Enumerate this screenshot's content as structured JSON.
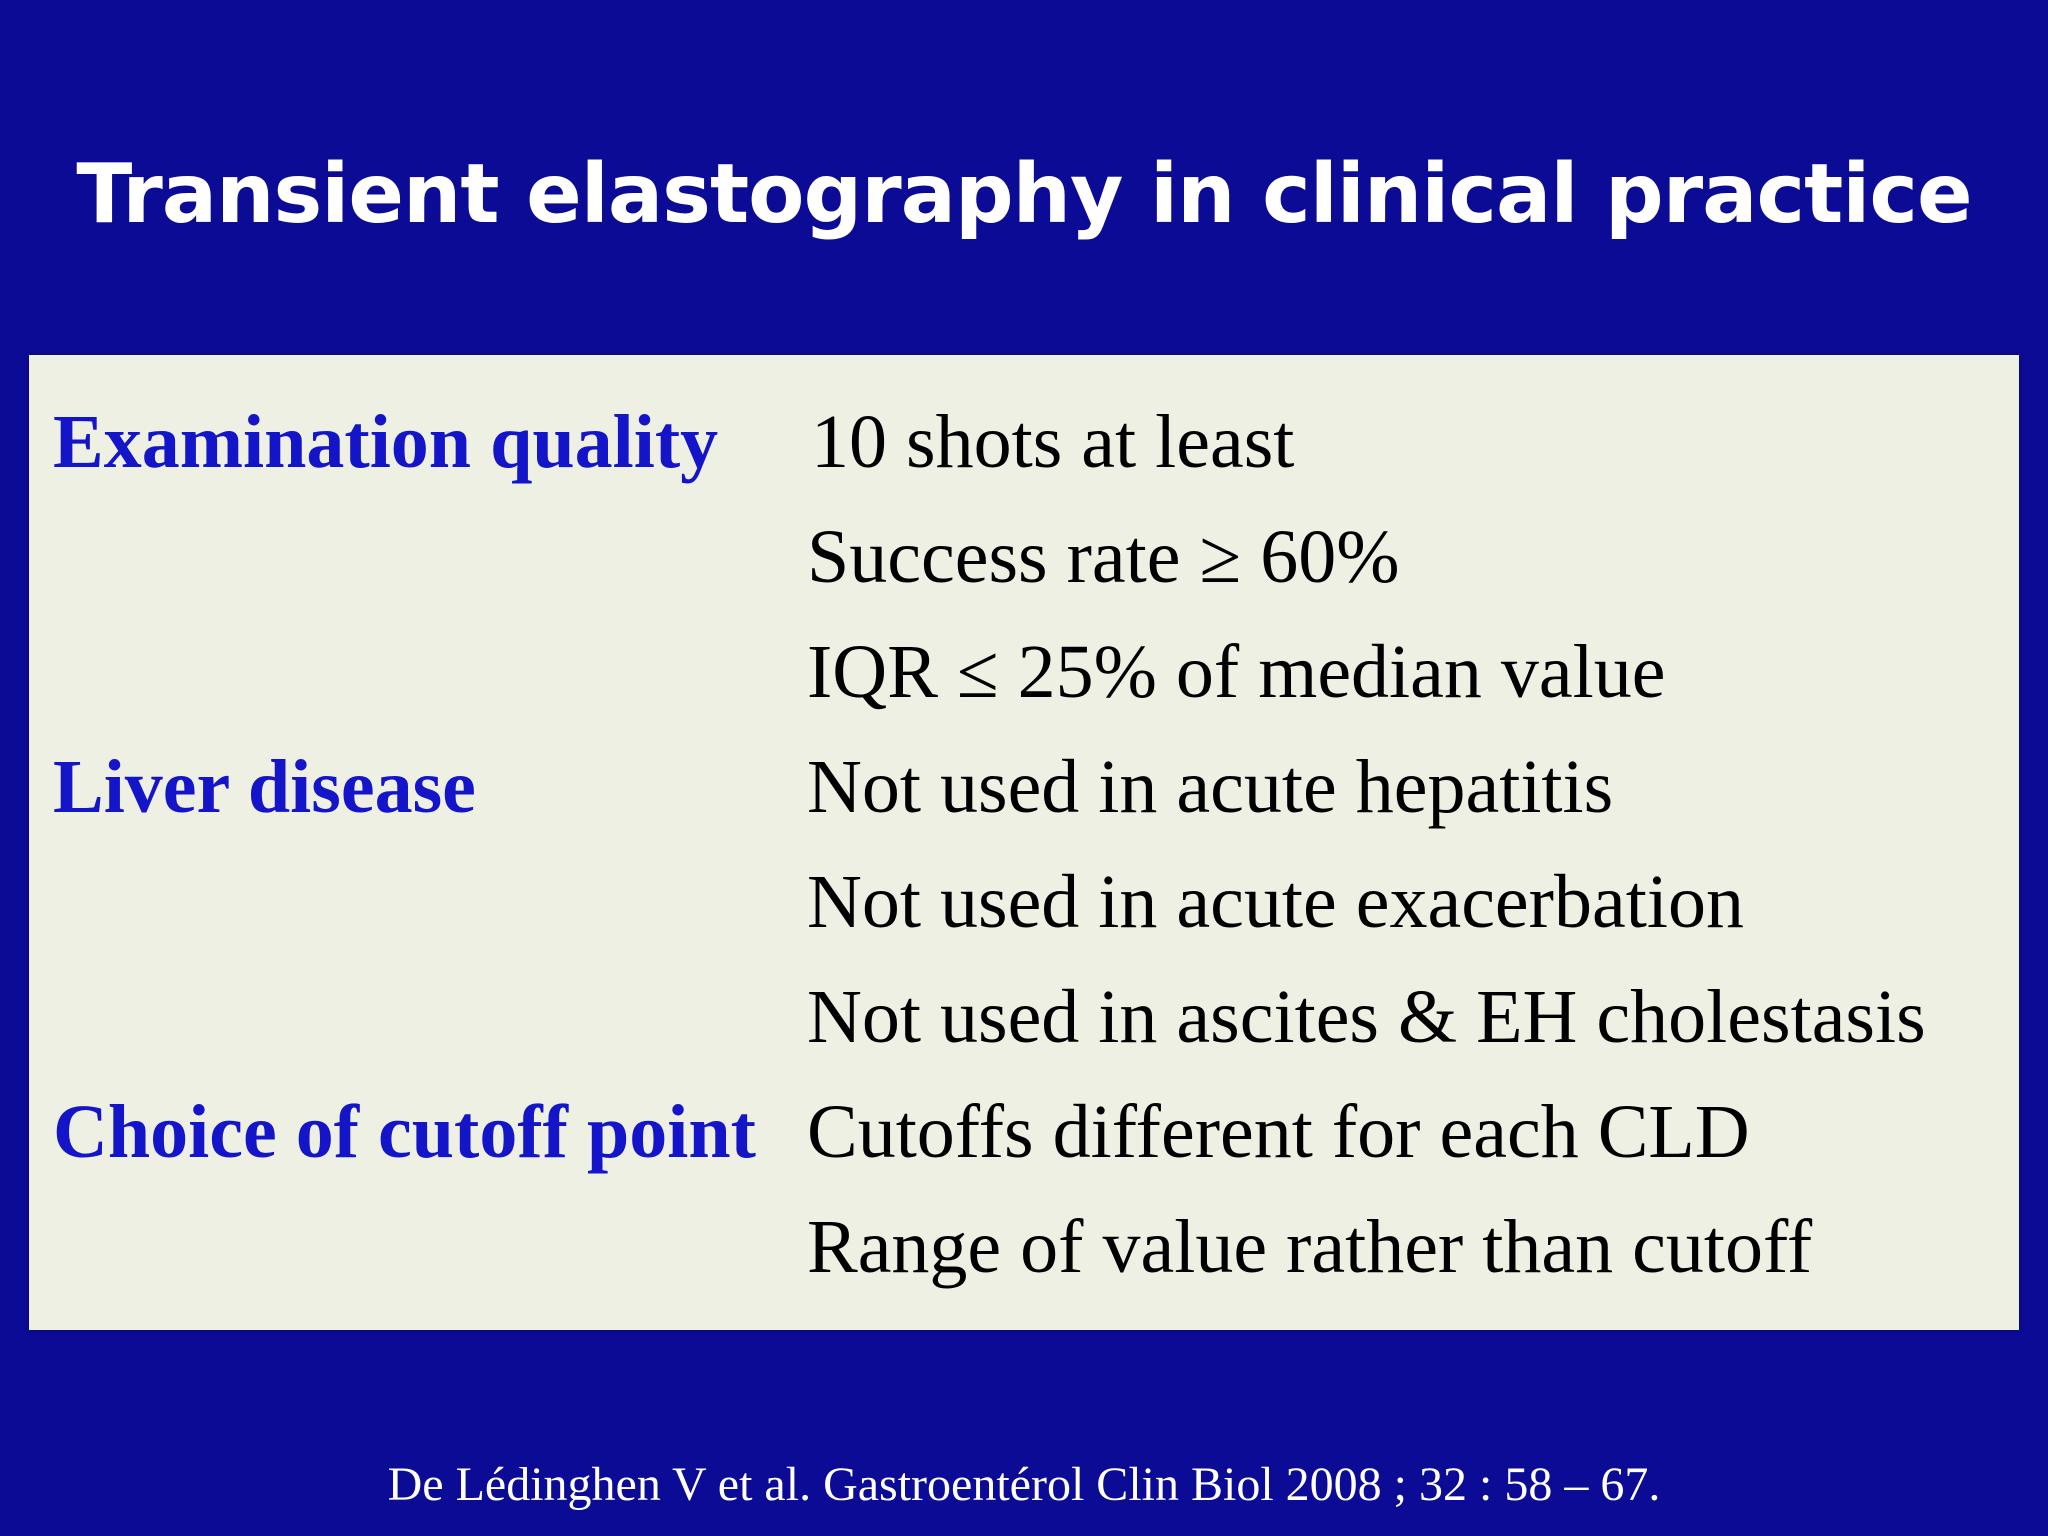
{
  "slide": {
    "title": "Transient elastography in clinical practice",
    "citation": "De Lédinghen V et al. Gastroentérol Clin Biol 2008 ; 32 : 58 – 67."
  },
  "table": {
    "rows": [
      {
        "label": "Examination quality",
        "value": "10 shots at least"
      },
      {
        "label": "",
        "value": "Success rate ≥ 60%"
      },
      {
        "label": "",
        "value": "IQR ≤ 25% of median value"
      },
      {
        "label": "Liver disease",
        "value": "Not used in acute hepatitis"
      },
      {
        "label": "",
        "value": "Not used in acute exacerbation"
      },
      {
        "label": "",
        "value": "Not used in ascites & EH cholestasis"
      },
      {
        "label": "Choice of cutoff point",
        "value": "Cutoffs different for each CLD"
      },
      {
        "label": "",
        "value": "Range of value rather than cutoff"
      }
    ]
  },
  "colors": {
    "background": "#0b0b96",
    "panel": "#eef0e4",
    "label": "#1414c8",
    "value": "#000000",
    "title": "#ffffff"
  }
}
